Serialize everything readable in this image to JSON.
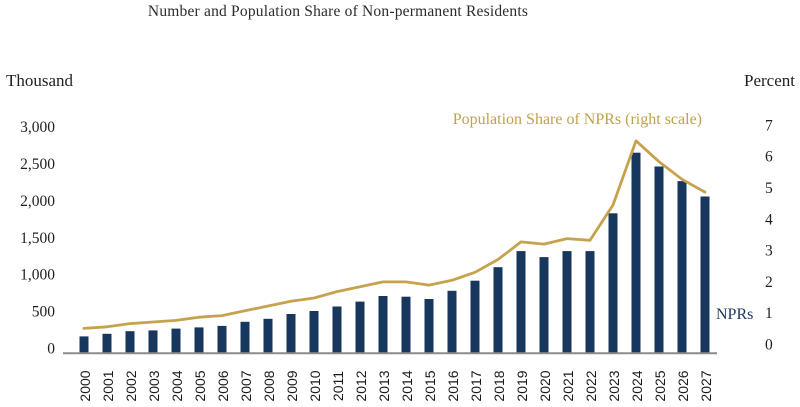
{
  "title": "Number and Population Share of Non-permanent Residents",
  "left_axis": {
    "unit_label": "Thousand",
    "ticks": [
      "0",
      "500",
      "1,000",
      "1,500",
      "2,000",
      "2,500",
      "3,000"
    ]
  },
  "right_axis": {
    "unit_label": "Percent",
    "ticks": [
      "0",
      "1",
      "2",
      "3",
      "4",
      "5",
      "6",
      "7"
    ]
  },
  "annotations": {
    "line_series_label": "Population Share of NPRs (right scale)",
    "bar_series_label": "NPRs"
  },
  "colors": {
    "bar": "#17375e",
    "line": "#c6a24f",
    "line_text": "#c2a04c",
    "axis_line": "#8c8c8c",
    "text": "#1f1f1f"
  },
  "chart_data": {
    "type": "bar",
    "subtype": "bar-and-line-dual-axis",
    "title": "Number and Population Share of Non-permanent Residents",
    "categories": [
      "2000",
      "2001",
      "2002",
      "2003",
      "2004",
      "2005",
      "2006",
      "2007",
      "2008",
      "2009",
      "2010",
      "2011",
      "2012",
      "2013",
      "2014",
      "2015",
      "2016",
      "2017",
      "2018",
      "2019",
      "2020",
      "2021",
      "2022",
      "2023",
      "2024",
      "2025",
      "2026",
      "2027"
    ],
    "series": [
      {
        "name": "NPRs",
        "type": "bar",
        "axis": "left",
        "unit": "thousand",
        "values": [
          215,
          250,
          285,
          295,
          320,
          335,
          355,
          410,
          450,
          515,
          555,
          615,
          680,
          755,
          745,
          715,
          825,
          960,
          1140,
          1355,
          1275,
          1355,
          1355,
          1860,
          2670,
          2485,
          2290,
          2085
        ]
      },
      {
        "name": "Population Share of NPRs (right scale)",
        "type": "line",
        "axis": "right",
        "unit": "percent",
        "values": [
          0.75,
          0.8,
          0.9,
          0.95,
          1.0,
          1.1,
          1.15,
          1.3,
          1.45,
          1.6,
          1.7,
          1.9,
          2.05,
          2.2,
          2.2,
          2.1,
          2.25,
          2.5,
          2.9,
          3.45,
          3.38,
          3.55,
          3.5,
          4.6,
          6.6,
          5.95,
          5.4,
          5.0
        ]
      }
    ],
    "left_ylabel": "Thousand",
    "right_ylabel": "Percent",
    "left_ylim": [
      0,
      3000
    ],
    "right_ylim": [
      0,
      7
    ],
    "grid": false,
    "legend_position": "inline-annotations"
  }
}
